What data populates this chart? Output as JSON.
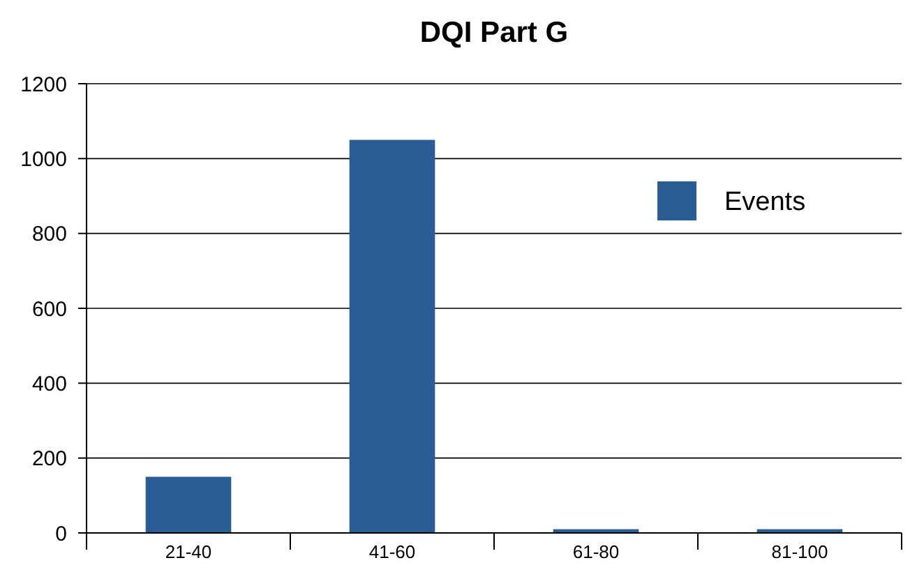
{
  "chart_data": {
    "type": "bar",
    "title": "DQI Part G",
    "categories": [
      "21-40",
      "41-60",
      "61-80",
      "81-100"
    ],
    "series": [
      {
        "name": "Events",
        "color": "#2a5d96",
        "values": [
          150,
          1050,
          10,
          10
        ]
      }
    ],
    "ylim": [
      0,
      1200
    ],
    "yticks": [
      0,
      200,
      400,
      600,
      800,
      1000,
      1200
    ],
    "grid": "y",
    "legend": "top right"
  }
}
